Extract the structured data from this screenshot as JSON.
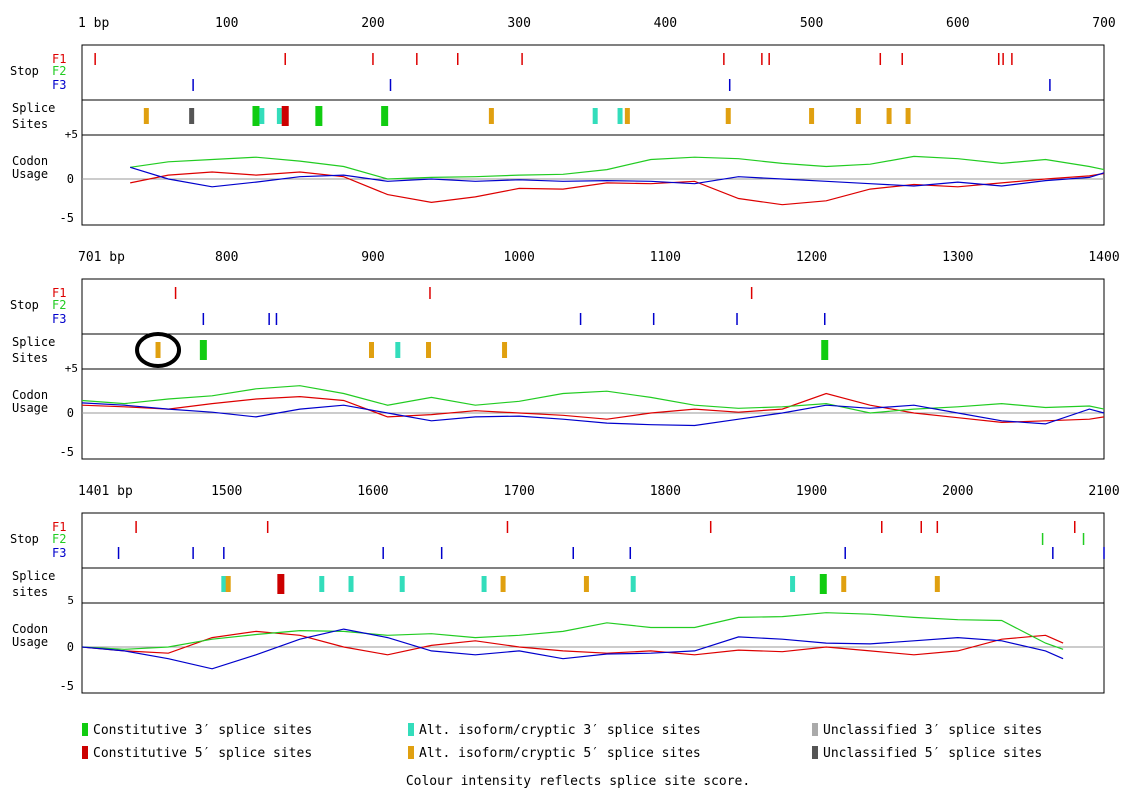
{
  "chart_data": {
    "type": "line",
    "title": "",
    "ylabel": "Codon Usage",
    "ylim": [
      -5,
      5
    ],
    "colors": {
      "F1": "#dd0000",
      "F2": "#22cc22",
      "F3": "#0000cc",
      "constitutive_3": "#11cc11",
      "constitutive_5": "#cc0000",
      "alt_3": "#33ddbb",
      "alt_5": "#e0a010",
      "unclassified_3": "#aaaaaa",
      "unclassified_5": "#555555",
      "circle": "#000000"
    },
    "labels": {
      "stop": "Stop",
      "splice_word_1": "Splice",
      "splice_word_2": "Sites",
      "splice_word_2_lower": "sites",
      "codon_1": "Codon",
      "codon_2": "Usage",
      "f1": "F1",
      "f2": "F2",
      "f3": "F3",
      "plus5": "+5",
      "five": "5",
      "zero": "0",
      "minus5": "-5"
    },
    "panels": [
      {
        "start_label": "1 bp",
        "xlim": [
          1,
          700
        ],
        "ticks": [
          100,
          200,
          300,
          400,
          500,
          600,
          700
        ],
        "splice_label_lower": false,
        "stops": {
          "F1": [
            10,
            140,
            200,
            230,
            258,
            302,
            440,
            466,
            471,
            547,
            562,
            628,
            631,
            637
          ],
          "F2": [],
          "F3": [
            77,
            212,
            444,
            663
          ]
        },
        "splice_sites": [
          {
            "pos": 45,
            "type": "alt_5",
            "score": 3
          },
          {
            "pos": 76,
            "type": "unclassified_5",
            "score": 3
          },
          {
            "pos": 120,
            "type": "constitutive_3",
            "score": 4
          },
          {
            "pos": 124,
            "type": "alt_3",
            "score": 3
          },
          {
            "pos": 136,
            "type": "alt_3",
            "score": 3
          },
          {
            "pos": 140,
            "type": "constitutive_5",
            "score": 4
          },
          {
            "pos": 163,
            "type": "constitutive_3",
            "score": 4
          },
          {
            "pos": 208,
            "type": "constitutive_3",
            "score": 4
          },
          {
            "pos": 281,
            "type": "alt_5",
            "score": 3
          },
          {
            "pos": 352,
            "type": "alt_3",
            "score": 3
          },
          {
            "pos": 369,
            "type": "alt_3",
            "score": 3
          },
          {
            "pos": 374,
            "type": "alt_5",
            "score": 3
          },
          {
            "pos": 443,
            "type": "alt_5",
            "score": 3
          },
          {
            "pos": 500,
            "type": "alt_5",
            "score": 3
          },
          {
            "pos": 532,
            "type": "alt_5",
            "score": 3
          },
          {
            "pos": 553,
            "type": "alt_5",
            "score": 3
          },
          {
            "pos": 566,
            "type": "alt_5",
            "score": 3
          }
        ],
        "highlight_pos": null,
        "series": [
          {
            "name": "F1",
            "x": [
              34,
              60,
              90,
              120,
              150,
              180,
              210,
              240,
              270,
              300,
              330,
              360,
              390,
              420,
              450,
              480,
              510,
              540,
              570,
              600,
              630,
              660,
              690,
              700
            ],
            "values": [
              -0.5,
              0.5,
              0.9,
              0.5,
              0.9,
              0.3,
              -2.0,
              -3.0,
              -2.3,
              -1.2,
              -1.3,
              -0.5,
              -0.6,
              -0.3,
              -2.5,
              -3.3,
              -2.8,
              -1.3,
              -0.7,
              -1.0,
              -0.5,
              0.0,
              0.4,
              0.7
            ]
          },
          {
            "name": "F2",
            "x": [
              34,
              60,
              90,
              120,
              150,
              180,
              210,
              240,
              270,
              300,
              330,
              360,
              390,
              420,
              450,
              480,
              510,
              540,
              570,
              600,
              630,
              660,
              690,
              700
            ],
            "values": [
              1.5,
              2.2,
              2.5,
              2.8,
              2.3,
              1.6,
              0.0,
              0.2,
              0.3,
              0.5,
              0.6,
              1.2,
              2.5,
              2.8,
              2.6,
              2.0,
              1.6,
              1.9,
              2.9,
              2.6,
              2.0,
              2.5,
              1.6,
              1.2
            ]
          },
          {
            "name": "F3",
            "x": [
              34,
              60,
              90,
              120,
              150,
              180,
              210,
              240,
              270,
              300,
              330,
              360,
              390,
              420,
              450,
              480,
              510,
              540,
              570,
              600,
              630,
              660,
              690,
              700
            ],
            "values": [
              1.5,
              0.0,
              -1.0,
              -0.4,
              0.3,
              0.5,
              -0.3,
              0.0,
              -0.3,
              -0.1,
              -0.3,
              -0.2,
              -0.3,
              -0.6,
              0.3,
              0.0,
              -0.3,
              -0.6,
              -0.9,
              -0.4,
              -0.9,
              -0.2,
              0.2,
              0.8
            ]
          }
        ]
      },
      {
        "start_label": "701 bp",
        "xlim": [
          701,
          1400
        ],
        "ticks": [
          800,
          900,
          1000,
          1100,
          1200,
          1300,
          1400
        ],
        "splice_label_lower": false,
        "stops": {
          "F1": [
            765,
            939,
            1159
          ],
          "F2": [],
          "F3": [
            784,
            829,
            834,
            1042,
            1092,
            1149,
            1209
          ]
        },
        "splice_sites": [
          {
            "pos": 753,
            "type": "alt_5",
            "score": 3
          },
          {
            "pos": 784,
            "type": "constitutive_3",
            "score": 4
          },
          {
            "pos": 899,
            "type": "alt_5",
            "score": 3
          },
          {
            "pos": 917,
            "type": "alt_3",
            "score": 3
          },
          {
            "pos": 938,
            "type": "alt_5",
            "score": 3
          },
          {
            "pos": 990,
            "type": "alt_5",
            "score": 3
          },
          {
            "pos": 1209,
            "type": "constitutive_3",
            "score": 4
          }
        ],
        "highlight_pos": 753,
        "series": [
          {
            "name": "F1",
            "x": [
              701,
              730,
              760,
              790,
              820,
              850,
              880,
              910,
              940,
              970,
              1000,
              1030,
              1060,
              1090,
              1120,
              1150,
              1180,
              1210,
              1240,
              1270,
              1300,
              1330,
              1360,
              1390,
              1400
            ],
            "values": [
              1.0,
              0.8,
              0.5,
              1.2,
              1.8,
              2.1,
              1.6,
              -0.5,
              -0.2,
              0.3,
              0.0,
              -0.3,
              -0.8,
              0.0,
              0.5,
              0.1,
              0.5,
              2.5,
              1.0,
              0.0,
              -0.6,
              -1.2,
              -1.0,
              -0.8,
              -0.5
            ]
          },
          {
            "name": "F2",
            "x": [
              701,
              730,
              760,
              790,
              820,
              850,
              880,
              910,
              940,
              970,
              1000,
              1030,
              1060,
              1090,
              1120,
              1150,
              1180,
              1210,
              1240,
              1270,
              1300,
              1330,
              1360,
              1390,
              1400
            ],
            "values": [
              1.6,
              1.2,
              1.8,
              2.2,
              3.1,
              3.5,
              2.5,
              1.0,
              2.0,
              1.0,
              1.5,
              2.5,
              2.8,
              2.0,
              1.0,
              0.6,
              0.8,
              1.2,
              0.0,
              0.5,
              0.8,
              1.2,
              0.7,
              0.9,
              0.5
            ]
          },
          {
            "name": "F3",
            "x": [
              701,
              730,
              760,
              790,
              820,
              850,
              880,
              910,
              940,
              970,
              1000,
              1030,
              1060,
              1090,
              1120,
              1150,
              1180,
              1210,
              1240,
              1270,
              1300,
              1330,
              1360,
              1390,
              1400
            ],
            "values": [
              1.3,
              1.0,
              0.5,
              0.1,
              -0.5,
              0.5,
              1.0,
              0.0,
              -1.0,
              -0.5,
              -0.4,
              -0.8,
              -1.3,
              -1.5,
              -1.6,
              -0.8,
              0.0,
              1.0,
              0.6,
              1.0,
              0.0,
              -1.0,
              -1.4,
              0.5,
              0.0
            ]
          }
        ]
      },
      {
        "start_label": "1401 bp",
        "xlim": [
          1401,
          2100
        ],
        "ticks": [
          1500,
          1600,
          1700,
          1800,
          1900,
          2000,
          2100
        ],
        "splice_label_lower": true,
        "stops": {
          "F1": [
            1438,
            1528,
            1692,
            1831,
            1948,
            1975,
            1986,
            2080
          ],
          "F2": [
            2058,
            2086
          ],
          "F3": [
            1426,
            1477,
            1498,
            1607,
            1647,
            1737,
            1776,
            1923,
            2065,
            2100
          ]
        },
        "splice_sites": [
          {
            "pos": 1498,
            "type": "alt_3",
            "score": 3
          },
          {
            "pos": 1501,
            "type": "alt_5",
            "score": 3
          },
          {
            "pos": 1537,
            "type": "constitutive_5",
            "score": 4
          },
          {
            "pos": 1565,
            "type": "alt_3",
            "score": 3
          },
          {
            "pos": 1585,
            "type": "alt_3",
            "score": 3
          },
          {
            "pos": 1620,
            "type": "alt_3",
            "score": 3
          },
          {
            "pos": 1676,
            "type": "alt_3",
            "score": 3
          },
          {
            "pos": 1689,
            "type": "alt_5",
            "score": 3
          },
          {
            "pos": 1746,
            "type": "alt_5",
            "score": 3
          },
          {
            "pos": 1778,
            "type": "alt_3",
            "score": 3
          },
          {
            "pos": 1887,
            "type": "alt_3",
            "score": 3
          },
          {
            "pos": 1908,
            "type": "constitutive_3",
            "score": 4
          },
          {
            "pos": 1922,
            "type": "alt_5",
            "score": 3
          },
          {
            "pos": 1986,
            "type": "alt_5",
            "score": 3
          }
        ],
        "highlight_pos": null,
        "series": [
          {
            "name": "F1",
            "x": [
              1401,
              1430,
              1460,
              1490,
              1520,
              1550,
              1580,
              1610,
              1640,
              1670,
              1700,
              1730,
              1760,
              1790,
              1820,
              1850,
              1880,
              1910,
              1940,
              1970,
              2000,
              2030,
              2060,
              2072
            ],
            "values": [
              0.0,
              -0.5,
              -0.8,
              1.2,
              2.0,
              1.5,
              0.0,
              -1.0,
              0.2,
              0.8,
              0.0,
              -0.5,
              -0.8,
              -0.5,
              -1.0,
              -0.4,
              -0.6,
              0.0,
              -0.5,
              -1.0,
              -0.5,
              1.0,
              1.5,
              0.5
            ]
          },
          {
            "name": "F2",
            "x": [
              1401,
              1430,
              1460,
              1490,
              1520,
              1550,
              1580,
              1610,
              1640,
              1670,
              1700,
              1730,
              1760,
              1790,
              1820,
              1850,
              1880,
              1910,
              1940,
              1970,
              2000,
              2030,
              2060,
              2072
            ],
            "values": [
              0.0,
              -0.3,
              0.0,
              1.0,
              1.6,
              2.1,
              2.0,
              1.5,
              1.7,
              1.2,
              1.5,
              2.0,
              3.1,
              2.5,
              2.5,
              3.8,
              3.9,
              4.4,
              4.2,
              3.8,
              3.5,
              3.4,
              0.5,
              -0.3
            ]
          },
          {
            "name": "F3",
            "x": [
              1401,
              1430,
              1460,
              1490,
              1520,
              1550,
              1580,
              1610,
              1640,
              1670,
              1700,
              1730,
              1760,
              1790,
              1820,
              1850,
              1880,
              1910,
              1940,
              1970,
              2000,
              2030,
              2060,
              2072
            ],
            "values": [
              0.0,
              -0.5,
              -1.5,
              -2.8,
              -1.0,
              1.0,
              2.3,
              1.2,
              -0.5,
              -1.0,
              -0.5,
              -1.5,
              -0.9,
              -0.8,
              -0.5,
              1.3,
              1.0,
              0.5,
              0.4,
              0.8,
              1.2,
              0.8,
              -0.5,
              -1.5
            ]
          }
        ]
      }
    ],
    "legend": [
      {
        "label": "Constitutive 3′ splice sites",
        "type": "constitutive_3"
      },
      {
        "label": "Constitutive 5′ splice sites",
        "type": "constitutive_5"
      },
      {
        "label": "Alt. isoform/cryptic 3′ splice sites",
        "type": "alt_3"
      },
      {
        "label": "Alt. isoform/cryptic 5′ splice sites",
        "type": "alt_5"
      },
      {
        "label": "Unclassified 3′ splice sites",
        "type": "unclassified_3"
      },
      {
        "label": "Unclassified 5′ splice sites",
        "type": "unclassified_5"
      }
    ],
    "footnote": "Colour intensity reflects splice site score."
  }
}
